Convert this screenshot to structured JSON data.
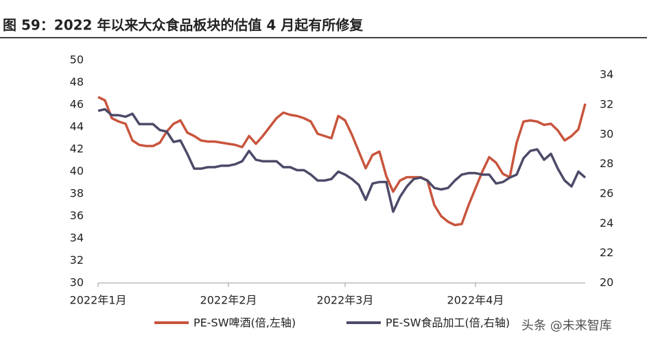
{
  "chart_data": {
    "type": "line",
    "title": "图 59：2022 年以来大众食品板块的估值 4 月起有所修复",
    "watermark": "头条 @未来智库",
    "categories": [
      "2022年1月",
      null,
      null,
      null,
      null,
      null,
      null,
      null,
      null,
      null,
      null,
      null,
      null,
      null,
      null,
      null,
      null,
      null,
      null,
      "2022年2月",
      null,
      null,
      null,
      null,
      null,
      null,
      null,
      null,
      null,
      null,
      null,
      null,
      null,
      null,
      null,
      null,
      "2022年3月",
      null,
      null,
      null,
      null,
      null,
      null,
      null,
      null,
      null,
      null,
      null,
      null,
      null,
      null,
      null,
      null,
      null,
      null,
      "2022年4月",
      null,
      null,
      null,
      null,
      null,
      null,
      null,
      null,
      null,
      null,
      null,
      null,
      null,
      null,
      null,
      null
    ],
    "ylim": [
      30,
      50
    ],
    "yticks": [
      30,
      32,
      34,
      36,
      38,
      40,
      42,
      44,
      46,
      48,
      50
    ],
    "y2lim": [
      20,
      35
    ],
    "y2ticks": [
      20,
      22,
      24,
      26,
      28,
      30,
      32,
      34
    ],
    "series": [
      {
        "name": "PE-SW啤酒(倍,左轴)",
        "color": "#c8553d",
        "values": [
          46.7,
          46.4,
          44.8,
          44.5,
          44.3,
          42.8,
          42.4,
          42.3,
          42.3,
          42.6,
          43.6,
          44.3,
          44.6,
          43.5,
          43.2,
          42.8,
          42.7,
          42.7,
          42.6,
          42.5,
          42.4,
          42.2,
          43.2,
          42.5,
          43.2,
          44.0,
          44.8,
          45.3,
          45.1,
          45.0,
          44.8,
          44.5,
          43.4,
          43.2,
          43.0,
          45.0,
          44.6,
          43.3,
          41.8,
          40.3,
          41.5,
          41.8,
          39.6,
          38.2,
          39.2,
          39.5,
          39.5,
          39.5,
          39.2,
          37.0,
          36.0,
          35.5,
          35.2,
          35.3,
          37.0,
          38.5,
          40.0,
          41.3,
          40.8,
          39.8,
          39.5,
          42.6,
          44.5,
          44.6,
          44.5,
          44.2,
          44.3,
          43.7,
          42.8,
          43.2,
          43.8,
          46.1
        ]
      },
      {
        "name": "PE-SW食品加工(倍,右轴)",
        "color": "#4b4a68",
        "axis": "y2",
        "values": [
          31.6,
          31.7,
          31.3,
          31.3,
          31.2,
          31.4,
          30.7,
          30.7,
          30.7,
          30.3,
          30.2,
          29.5,
          29.6,
          28.7,
          27.7,
          27.7,
          27.8,
          27.8,
          27.9,
          27.9,
          28.0,
          28.2,
          28.9,
          28.3,
          28.2,
          28.2,
          28.2,
          27.8,
          27.8,
          27.6,
          27.6,
          27.3,
          26.9,
          26.9,
          27.0,
          27.5,
          27.3,
          27.0,
          26.6,
          25.6,
          26.7,
          26.8,
          26.8,
          24.8,
          25.8,
          26.5,
          27.0,
          27.1,
          26.9,
          26.4,
          26.3,
          26.4,
          26.9,
          27.3,
          27.4,
          27.4,
          27.3,
          27.3,
          26.7,
          26.8,
          27.1,
          27.3,
          28.4,
          28.9,
          29.0,
          28.3,
          28.7,
          27.7,
          26.9,
          26.5,
          27.5,
          27.1
        ]
      }
    ]
  }
}
